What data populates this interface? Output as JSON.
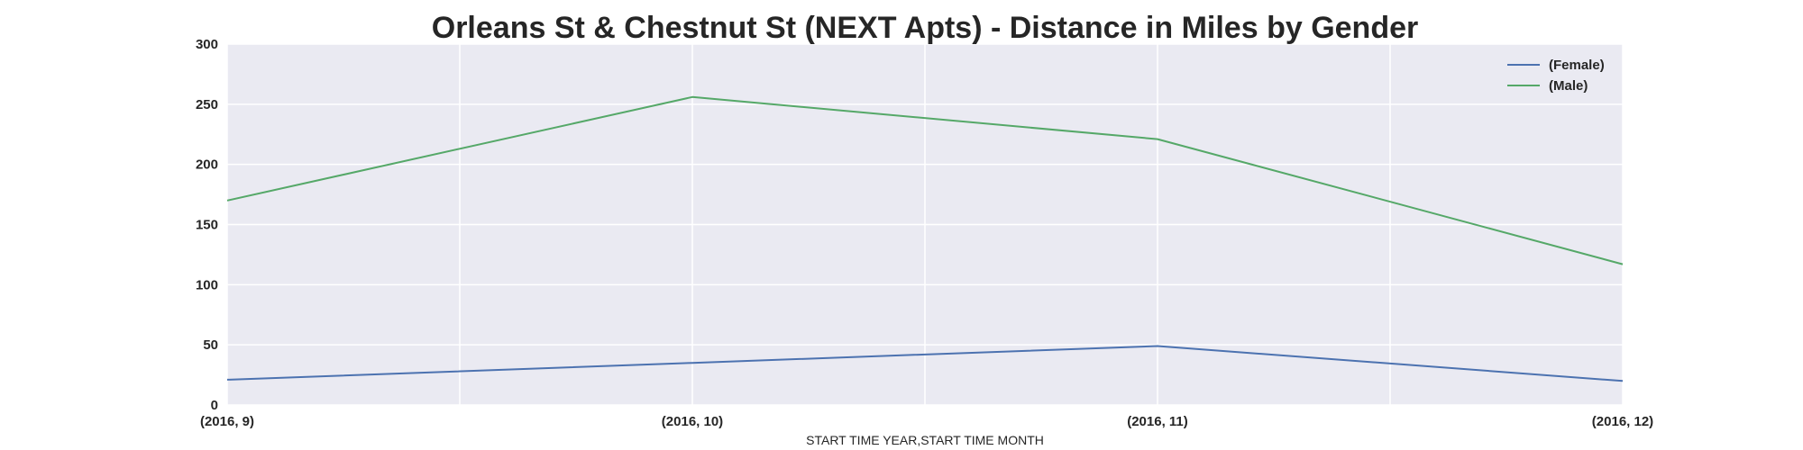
{
  "chart_data": {
    "type": "line",
    "title": "Orleans St & Chestnut St (NEXT Apts) - Distance in Miles by Gender",
    "xlabel": "START TIME YEAR,START TIME MONTH",
    "ylabel": "",
    "categories": [
      "(2016, 9)",
      "(2016, 10)",
      "(2016, 11)",
      "(2016, 12)"
    ],
    "ylim": [
      0,
      300
    ],
    "yticks": [
      0,
      50,
      100,
      150,
      200,
      250,
      300
    ],
    "grid": true,
    "legend_position": "top-right",
    "background_color": "#EAEAF2",
    "series": [
      {
        "name": "(Female)",
        "color": "#4C72B0",
        "values": [
          21,
          35,
          49,
          20
        ]
      },
      {
        "name": "(Male)",
        "color": "#55A868",
        "values": [
          170,
          256,
          221,
          117
        ]
      }
    ]
  }
}
